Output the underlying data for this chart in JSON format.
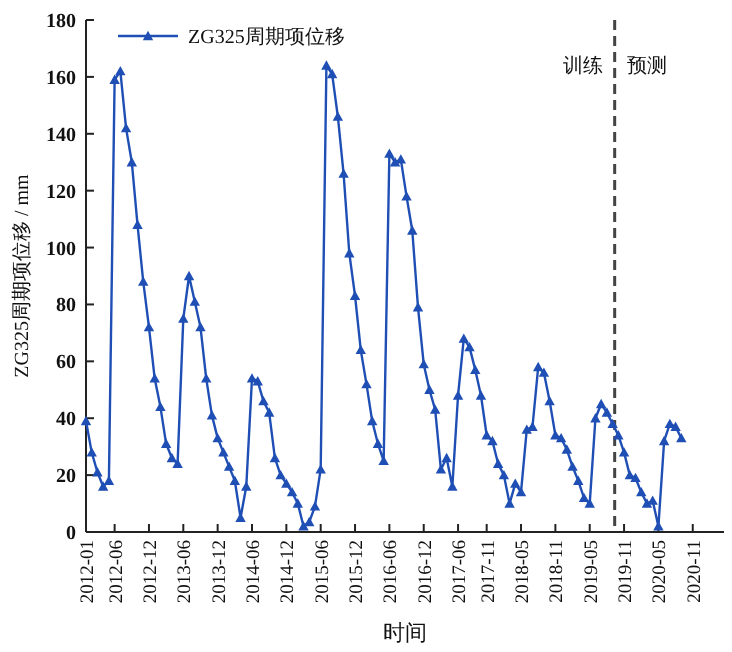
{
  "chart_data": {
    "type": "line",
    "xlabel": "时间",
    "ylabel": "ZG325周期项位移 / mm",
    "x": [
      "2012-01",
      "2012-02",
      "2012-03",
      "2012-04",
      "2012-05",
      "2012-06",
      "2012-07",
      "2012-08",
      "2012-09",
      "2012-10",
      "2012-11",
      "2012-12",
      "2013-01",
      "2013-02",
      "2013-03",
      "2013-04",
      "2013-05",
      "2013-06",
      "2013-07",
      "2013-08",
      "2013-09",
      "2013-10",
      "2013-11",
      "2013-12",
      "2014-01",
      "2014-02",
      "2014-03",
      "2014-04",
      "2014-05",
      "2014-06",
      "2014-07",
      "2014-08",
      "2014-09",
      "2014-10",
      "2014-11",
      "2014-12",
      "2015-01",
      "2015-02",
      "2015-03",
      "2015-04",
      "2015-05",
      "2015-06",
      "2015-07",
      "2015-08",
      "2015-09",
      "2015-10",
      "2015-11",
      "2015-12",
      "2016-01",
      "2016-02",
      "2016-03",
      "2016-04",
      "2016-05",
      "2016-06",
      "2016-07",
      "2016-08",
      "2016-09",
      "2016-10",
      "2016-11",
      "2016-12",
      "2017-01",
      "2017-02",
      "2017-03",
      "2017-04",
      "2017-05",
      "2017-06",
      "2017-07",
      "2017-08",
      "2017-09",
      "2017-10",
      "2017-11",
      "2017-12",
      "2018-01",
      "2018-02",
      "2018-03",
      "2018-04",
      "2018-05",
      "2018-06",
      "2018-07",
      "2018-08",
      "2018-09",
      "2018-10",
      "2018-11",
      "2018-12",
      "2019-01",
      "2019-02",
      "2019-03",
      "2019-04",
      "2019-05",
      "2019-06",
      "2019-07",
      "2019-08",
      "2019-09",
      "2019-10",
      "2019-11",
      "2019-12",
      "2020-01",
      "2020-02",
      "2020-03",
      "2020-04",
      "2020-05",
      "2020-06",
      "2020-07",
      "2020-08",
      "2020-09"
    ],
    "series": [
      {
        "name": "ZG325周期项位移",
        "color": "#1f4fb4",
        "values": [
          39,
          28,
          21,
          16,
          18,
          159,
          162,
          142,
          130,
          108,
          88,
          72,
          54,
          44,
          31,
          26,
          24,
          75,
          90,
          81,
          72,
          54,
          41,
          33,
          28,
          23,
          18,
          5,
          16,
          54,
          53,
          46,
          42,
          26,
          20,
          17,
          14,
          10,
          2,
          3.5,
          9,
          22,
          164,
          161,
          146,
          126,
          98,
          83,
          64,
          52,
          39,
          31,
          25,
          133,
          130,
          131,
          118,
          106,
          79,
          59,
          50,
          43,
          22,
          26,
          16,
          48,
          68,
          65,
          57,
          48,
          34,
          32,
          24,
          20,
          10,
          17,
          14,
          36,
          37,
          58,
          56,
          46,
          34,
          33,
          29,
          23,
          18,
          12,
          10,
          40,
          45,
          42,
          38,
          34,
          28,
          20,
          19,
          14,
          10,
          11,
          2,
          32,
          38,
          37,
          33
        ]
      }
    ],
    "xlim": [
      "2012-01",
      "2021-04-15"
    ],
    "xticks": [
      "2012-01",
      "2012-06",
      "2012-12",
      "2013-06",
      "2013-12",
      "2014-06",
      "2014-12",
      "2015-06",
      "2015-12",
      "2016-06",
      "2016-12",
      "2017-06",
      "2017-11",
      "2018-05",
      "2018-11",
      "2019-05",
      "2019-11",
      "2020-05",
      "2020-11"
    ],
    "ylim": [
      0,
      180
    ],
    "yticks": [
      0,
      20,
      40,
      60,
      80,
      100,
      120,
      140,
      160,
      180
    ],
    "ref_lines": [
      {
        "axis": "x",
        "value": "2019-09-12",
        "color": "#444444",
        "line_style": "dashed"
      }
    ],
    "annotations": [
      "训练",
      "预测"
    ],
    "marker": "triangle",
    "line_style": "solid",
    "legend": "top left",
    "grid": false
  }
}
